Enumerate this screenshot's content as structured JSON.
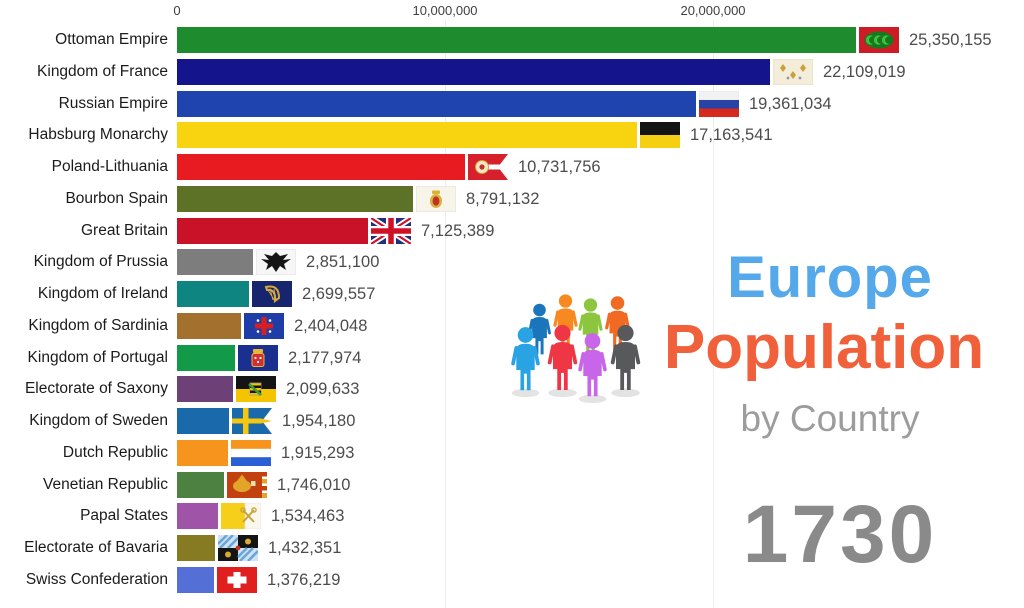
{
  "title_block": {
    "line1": "Europe",
    "line2": "Population",
    "line3": "by Country",
    "year": "1730",
    "line1_color": "#55a8e9",
    "line2_color": "#f0603a",
    "line3_color": "#9c9c9c",
    "year_color": "#8a8a8a",
    "people_icon_colors": {
      "back": [
        "#1b75bb",
        "#f6891f",
        "#8cc63f",
        "#f26a21"
      ],
      "front": [
        "#29a3e3",
        "#ee3645",
        "#c965e8",
        "#58595b"
      ]
    }
  },
  "chart_data": {
    "type": "bar",
    "orientation": "horizontal",
    "title": "Europe Population by Country",
    "year_shown": "1730",
    "grid": "vertical-light",
    "x_axis": {
      "ticks": [
        "0",
        "10,000,000",
        "20,000,000"
      ],
      "tick_values": [
        0,
        10000000,
        20000000
      ],
      "xlim": [
        0,
        31600000
      ]
    },
    "series": [
      {
        "name": "Ottoman Empire",
        "value": 25350155,
        "value_label": "25,350,155",
        "color": "#1f8b2f",
        "flag": "ottoman-flag-icon"
      },
      {
        "name": "Kingdom of France",
        "value": 22109019,
        "value_label": "22,109,019",
        "color": "#14148c",
        "flag": "royal-france-flag-icon"
      },
      {
        "name": "Russian Empire",
        "value": 19361034,
        "value_label": "19,361,034",
        "color": "#1f44ad",
        "flag": "russia-flag-icon"
      },
      {
        "name": "Habsburg Monarchy",
        "value": 17163541,
        "value_label": "17,163,541",
        "color": "#f8d410",
        "flag": "habsburg-flag-icon"
      },
      {
        "name": "Poland-Lithuania",
        "value": 10731756,
        "value_label": "10,731,756",
        "color": "#e81c20",
        "flag": "poland-lithuania-flag-icon"
      },
      {
        "name": "Bourbon Spain",
        "value": 8791132,
        "value_label": "8,791,132",
        "color": "#5d7226",
        "flag": "bourbon-spain-flag-icon"
      },
      {
        "name": "Great Britain",
        "value": 7125389,
        "value_label": "7,125,389",
        "color": "#c91227",
        "flag": "great-britain-flag-icon"
      },
      {
        "name": "Kingdom of Prussia",
        "value": 2851100,
        "value_label": "2,851,100",
        "color": "#7d7d7d",
        "flag": "prussia-flag-icon"
      },
      {
        "name": "Kingdom of Ireland",
        "value": 2699557,
        "value_label": "2,699,557",
        "color": "#0e8580",
        "flag": "ireland-flag-icon"
      },
      {
        "name": "Kingdom of Sardinia",
        "value": 2404048,
        "value_label": "2,404,048",
        "color": "#a4702e",
        "flag": "sardinia-flag-icon"
      },
      {
        "name": "Kingdom of Portugal",
        "value": 2177974,
        "value_label": "2,177,974",
        "color": "#129a48",
        "flag": "portugal-flag-icon"
      },
      {
        "name": "Electorate of Saxony",
        "value": 2099633,
        "value_label": "2,099,633",
        "color": "#6d4078",
        "flag": "saxony-flag-icon"
      },
      {
        "name": "Kingdom of Sweden",
        "value": 1954180,
        "value_label": "1,954,180",
        "color": "#1a6aab",
        "flag": "sweden-flag-icon"
      },
      {
        "name": "Dutch Republic",
        "value": 1915293,
        "value_label": "1,915,293",
        "color": "#f7941d",
        "flag": "dutch-republic-flag-icon"
      },
      {
        "name": "Venetian Republic",
        "value": 1746010,
        "value_label": "1,746,010",
        "color": "#4d8142",
        "flag": "venice-flag-icon"
      },
      {
        "name": "Papal States",
        "value": 1534463,
        "value_label": "1,534,463",
        "color": "#a054a8",
        "flag": "papal-states-flag-icon"
      },
      {
        "name": "Electorate of Bavaria",
        "value": 1432351,
        "value_label": "1,432,351",
        "color": "#867a22",
        "flag": "bavaria-flag-icon"
      },
      {
        "name": "Swiss Confederation",
        "value": 1376219,
        "value_label": "1,376,219",
        "color": "#5470d6",
        "flag": "swiss-flag-icon"
      }
    ]
  }
}
